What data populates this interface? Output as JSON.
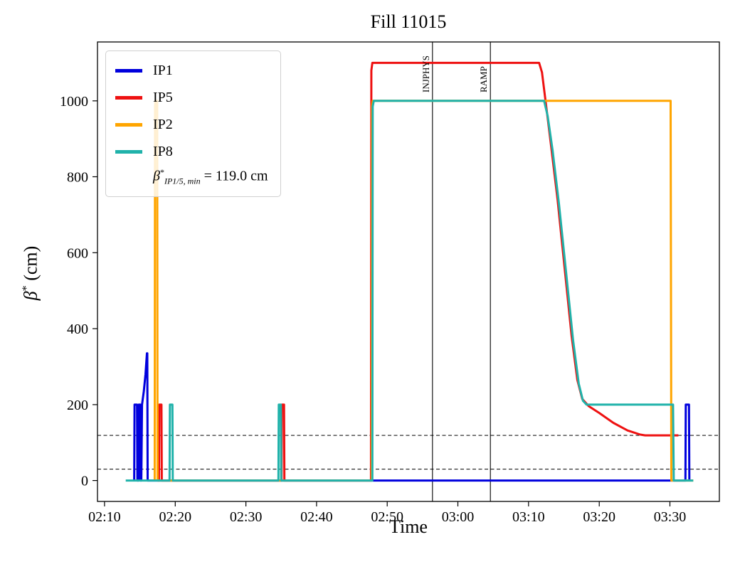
{
  "title": "Fill 11015",
  "axes": {
    "xlabel": "Time",
    "ylabel_beta": "β",
    "ylabel_sup": "*",
    "ylabel_rest": " (cm)"
  },
  "legend_annotation": {
    "beta": "β",
    "star": "*",
    "sub": "IP1/5, min",
    "rest": " = 119.0 cm"
  },
  "chart_data": {
    "type": "line",
    "title": "Fill 11015",
    "xlabel": "Time",
    "ylabel": "β* (cm)",
    "x_encoding": "minutes since 02:00",
    "xlim": [
      9,
      97
    ],
    "ylim": [
      -55,
      1155
    ],
    "grid": false,
    "legend_position": "upper left",
    "x_ticks": [
      {
        "value": 10,
        "label": "02:10"
      },
      {
        "value": 20,
        "label": "02:20"
      },
      {
        "value": 30,
        "label": "02:30"
      },
      {
        "value": 40,
        "label": "02:40"
      },
      {
        "value": 50,
        "label": "02:50"
      },
      {
        "value": 60,
        "label": "03:00"
      },
      {
        "value": 70,
        "label": "03:10"
      },
      {
        "value": 80,
        "label": "03:20"
      },
      {
        "value": 90,
        "label": "03:30"
      }
    ],
    "y_ticks": [
      {
        "value": 0,
        "label": "0"
      },
      {
        "value": 200,
        "label": "200"
      },
      {
        "value": 400,
        "label": "400"
      },
      {
        "value": 600,
        "label": "600"
      },
      {
        "value": 800,
        "label": "800"
      },
      {
        "value": 1000,
        "label": "1000"
      }
    ],
    "hlines": [
      {
        "value": 119,
        "style": "dashed",
        "color": "#000000"
      },
      {
        "value": 30,
        "style": "dashed",
        "color": "#000000"
      }
    ],
    "vlines": [
      {
        "value": 56.4,
        "label": "INJPHYS",
        "color": "#000000"
      },
      {
        "value": 64.6,
        "label": "RAMP",
        "color": "#000000"
      }
    ],
    "legend_entries": [
      "IP1",
      "IP5",
      "IP2",
      "IP8"
    ],
    "annotation": "β*_{IP1/5, min} = 119.0 cm",
    "series": [
      {
        "name": "IP1",
        "color": "#0000dd",
        "points": [
          [
            14.2,
            0
          ],
          [
            14.25,
            200
          ],
          [
            14.6,
            200
          ],
          [
            14.65,
            0
          ],
          [
            14.8,
            0
          ],
          [
            14.85,
            200
          ],
          [
            15.05,
            200
          ],
          [
            15.1,
            0
          ],
          [
            15.2,
            0
          ],
          [
            15.3,
            200
          ],
          [
            15.55,
            235
          ],
          [
            15.8,
            280
          ],
          [
            16.0,
            335
          ],
          [
            16.05,
            335
          ],
          [
            16.1,
            0
          ],
          [
            92.2,
            0
          ],
          [
            92.25,
            200
          ],
          [
            92.7,
            200
          ],
          [
            92.75,
            0
          ]
        ]
      },
      {
        "name": "IP5",
        "color": "#ee1111",
        "points": [
          [
            17.55,
            0
          ],
          [
            17.7,
            0
          ],
          [
            17.75,
            200
          ],
          [
            18.05,
            200
          ],
          [
            18.1,
            0
          ],
          [
            35.05,
            0
          ],
          [
            35.1,
            200
          ],
          [
            35.4,
            200
          ],
          [
            35.45,
            0
          ],
          [
            47.7,
            0
          ],
          [
            47.75,
            1080
          ],
          [
            47.9,
            1100
          ],
          [
            71.5,
            1100
          ],
          [
            71.9,
            1075
          ],
          [
            72.4,
            1000
          ],
          [
            73.2,
            880
          ],
          [
            74.1,
            740
          ],
          [
            75.1,
            560
          ],
          [
            76.1,
            380
          ],
          [
            76.9,
            265
          ],
          [
            77.6,
            215
          ],
          [
            78.5,
            196
          ],
          [
            80.0,
            178
          ],
          [
            82.0,
            152
          ],
          [
            84.0,
            132
          ],
          [
            85.8,
            121
          ],
          [
            86.5,
            119
          ],
          [
            91.2,
            119
          ]
        ]
      },
      {
        "name": "IP2",
        "color": "#ffa500",
        "points": [
          [
            17.1,
            0
          ],
          [
            17.15,
            985
          ],
          [
            17.2,
            1000
          ],
          [
            17.45,
            1000
          ],
          [
            17.5,
            0
          ],
          [
            47.8,
            0
          ],
          [
            47.85,
            985
          ],
          [
            47.95,
            1000
          ],
          [
            90.1,
            1000
          ],
          [
            90.2,
            0
          ],
          [
            93.3,
            0
          ]
        ]
      },
      {
        "name": "IP8",
        "color": "#20b2aa",
        "points": [
          [
            13.0,
            0
          ],
          [
            19.2,
            0
          ],
          [
            19.25,
            200
          ],
          [
            19.6,
            200
          ],
          [
            19.65,
            0
          ],
          [
            34.6,
            0
          ],
          [
            34.65,
            200
          ],
          [
            34.95,
            200
          ],
          [
            35.0,
            0
          ],
          [
            47.9,
            0
          ],
          [
            47.95,
            985
          ],
          [
            48.1,
            1000
          ],
          [
            72.2,
            1000
          ],
          [
            72.7,
            960
          ],
          [
            73.4,
            870
          ],
          [
            74.3,
            730
          ],
          [
            75.3,
            550
          ],
          [
            76.3,
            370
          ],
          [
            77.1,
            255
          ],
          [
            77.7,
            210
          ],
          [
            78.2,
            200
          ],
          [
            90.45,
            200
          ],
          [
            90.55,
            0
          ],
          [
            93.3,
            0
          ]
        ]
      }
    ]
  }
}
